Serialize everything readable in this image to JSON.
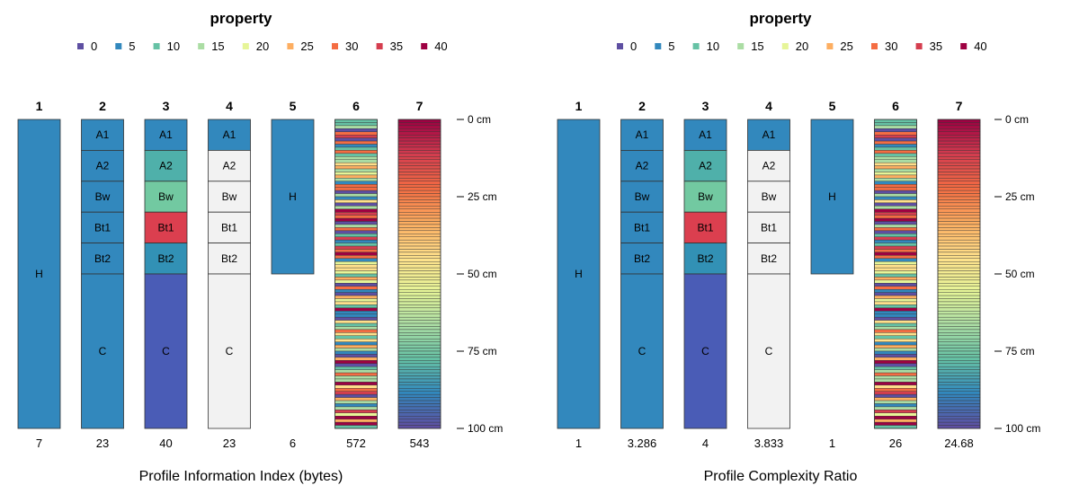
{
  "chart_data": [
    {
      "type": "soil-profile-sketch",
      "title": "property",
      "xlabel": "Profile Information Index (bytes)",
      "legend": {
        "position": "top",
        "entries": [
          {
            "label": "0",
            "color": "#5e4fa2"
          },
          {
            "label": "5",
            "color": "#3288bd"
          },
          {
            "label": "10",
            "color": "#66c2a5"
          },
          {
            "label": "15",
            "color": "#abdda4"
          },
          {
            "label": "20",
            "color": "#e6f598"
          },
          {
            "label": "25",
            "color": "#fdae61"
          },
          {
            "label": "30",
            "color": "#f46d43"
          },
          {
            "label": "35",
            "color": "#d53e4f"
          },
          {
            "label": "40",
            "color": "#9e0142"
          }
        ]
      },
      "depth_axis": {
        "ticks": [
          {
            "value": 0,
            "label": "0 cm"
          },
          {
            "value": 25,
            "label": "25 cm"
          },
          {
            "value": 50,
            "label": "50 cm"
          },
          {
            "value": 75,
            "label": "75 cm"
          },
          {
            "value": 100,
            "label": "100 cm"
          }
        ],
        "range": [
          0,
          100
        ]
      },
      "profiles": [
        {
          "id": "1",
          "value": "7",
          "pattern": "single",
          "horizons": [
            {
              "name": "H",
              "top": 0,
              "bottom": 100,
              "color": "#3288bd"
            }
          ]
        },
        {
          "id": "2",
          "value": "23",
          "pattern": "named",
          "horizons": [
            {
              "name": "A1",
              "top": 0,
              "bottom": 10,
              "color": "#3288bd"
            },
            {
              "name": "A2",
              "top": 10,
              "bottom": 20,
              "color": "#3288bd"
            },
            {
              "name": "Bw",
              "top": 20,
              "bottom": 30,
              "color": "#3288bd"
            },
            {
              "name": "Bt1",
              "top": 30,
              "bottom": 40,
              "color": "#3288bd"
            },
            {
              "name": "Bt2",
              "top": 40,
              "bottom": 50,
              "color": "#3288bd"
            },
            {
              "name": "C",
              "top": 50,
              "bottom": 100,
              "color": "#3288bd"
            }
          ]
        },
        {
          "id": "3",
          "value": "40",
          "pattern": "named",
          "horizons": [
            {
              "name": "A1",
              "top": 0,
              "bottom": 10,
              "color": "#3288bd"
            },
            {
              "name": "A2",
              "top": 10,
              "bottom": 20,
              "color": "#4fb0aa"
            },
            {
              "name": "Bw",
              "top": 20,
              "bottom": 30,
              "color": "#72c9a1"
            },
            {
              "name": "Bt1",
              "top": 30,
              "bottom": 40,
              "color": "#db3f4f"
            },
            {
              "name": "Bt2",
              "top": 40,
              "bottom": 50,
              "color": "#3291b5"
            },
            {
              "name": "C",
              "top": 50,
              "bottom": 100,
              "color": "#4a5cb6"
            }
          ]
        },
        {
          "id": "4",
          "value": "23",
          "pattern": "named",
          "horizons": [
            {
              "name": "A1",
              "top": 0,
              "bottom": 10,
              "color": "#3288bd"
            },
            {
              "name": "A2",
              "top": 10,
              "bottom": 20,
              "color": "#f2f2f2"
            },
            {
              "name": "Bw",
              "top": 20,
              "bottom": 30,
              "color": "#f2f2f2"
            },
            {
              "name": "Bt1",
              "top": 30,
              "bottom": 40,
              "color": "#f2f2f2"
            },
            {
              "name": "Bt2",
              "top": 40,
              "bottom": 50,
              "color": "#f2f2f2"
            },
            {
              "name": "C",
              "top": 50,
              "bottom": 100,
              "color": "#f2f2f2"
            }
          ]
        },
        {
          "id": "5",
          "value": "6",
          "pattern": "single",
          "horizons": [
            {
              "name": "H",
              "top": 0,
              "bottom": 50,
              "color": "#3288bd"
            }
          ]
        },
        {
          "id": "6",
          "value": "572",
          "pattern": "random-stripes",
          "seed": 11,
          "stripes": 100,
          "bottom": 100
        },
        {
          "id": "7",
          "value": "543",
          "pattern": "gradient",
          "stripes": 100,
          "bottom": 100
        }
      ]
    },
    {
      "type": "soil-profile-sketch",
      "title": "property",
      "xlabel": "Profile Complexity Ratio",
      "legend": {
        "position": "top",
        "entries": [
          {
            "label": "0",
            "color": "#5e4fa2"
          },
          {
            "label": "5",
            "color": "#3288bd"
          },
          {
            "label": "10",
            "color": "#66c2a5"
          },
          {
            "label": "15",
            "color": "#abdda4"
          },
          {
            "label": "20",
            "color": "#e6f598"
          },
          {
            "label": "25",
            "color": "#fdae61"
          },
          {
            "label": "30",
            "color": "#f46d43"
          },
          {
            "label": "35",
            "color": "#d53e4f"
          },
          {
            "label": "40",
            "color": "#9e0142"
          }
        ]
      },
      "depth_axis": {
        "ticks": [
          {
            "value": 0,
            "label": "0 cm"
          },
          {
            "value": 25,
            "label": "25 cm"
          },
          {
            "value": 50,
            "label": "50 cm"
          },
          {
            "value": 75,
            "label": "75 cm"
          },
          {
            "value": 100,
            "label": "100 cm"
          }
        ],
        "range": [
          0,
          100
        ]
      },
      "profiles": [
        {
          "id": "1",
          "value": "1",
          "pattern": "single",
          "horizons": [
            {
              "name": "H",
              "top": 0,
              "bottom": 100,
              "color": "#3288bd"
            }
          ]
        },
        {
          "id": "2",
          "value": "3.286",
          "pattern": "named",
          "horizons": [
            {
              "name": "A1",
              "top": 0,
              "bottom": 10,
              "color": "#3288bd"
            },
            {
              "name": "A2",
              "top": 10,
              "bottom": 20,
              "color": "#3288bd"
            },
            {
              "name": "Bw",
              "top": 20,
              "bottom": 30,
              "color": "#3288bd"
            },
            {
              "name": "Bt1",
              "top": 30,
              "bottom": 40,
              "color": "#3288bd"
            },
            {
              "name": "Bt2",
              "top": 40,
              "bottom": 50,
              "color": "#3288bd"
            },
            {
              "name": "C",
              "top": 50,
              "bottom": 100,
              "color": "#3288bd"
            }
          ]
        },
        {
          "id": "3",
          "value": "4",
          "pattern": "named",
          "horizons": [
            {
              "name": "A1",
              "top": 0,
              "bottom": 10,
              "color": "#3288bd"
            },
            {
              "name": "A2",
              "top": 10,
              "bottom": 20,
              "color": "#4fb0aa"
            },
            {
              "name": "Bw",
              "top": 20,
              "bottom": 30,
              "color": "#72c9a1"
            },
            {
              "name": "Bt1",
              "top": 30,
              "bottom": 40,
              "color": "#db3f4f"
            },
            {
              "name": "Bt2",
              "top": 40,
              "bottom": 50,
              "color": "#3291b5"
            },
            {
              "name": "C",
              "top": 50,
              "bottom": 100,
              "color": "#4a5cb6"
            }
          ]
        },
        {
          "id": "4",
          "value": "3.833",
          "pattern": "named",
          "horizons": [
            {
              "name": "A1",
              "top": 0,
              "bottom": 10,
              "color": "#3288bd"
            },
            {
              "name": "A2",
              "top": 10,
              "bottom": 20,
              "color": "#f2f2f2"
            },
            {
              "name": "Bw",
              "top": 20,
              "bottom": 30,
              "color": "#f2f2f2"
            },
            {
              "name": "Bt1",
              "top": 30,
              "bottom": 40,
              "color": "#f2f2f2"
            },
            {
              "name": "Bt2",
              "top": 40,
              "bottom": 50,
              "color": "#f2f2f2"
            },
            {
              "name": "C",
              "top": 50,
              "bottom": 100,
              "color": "#f2f2f2"
            }
          ]
        },
        {
          "id": "5",
          "value": "1",
          "pattern": "single",
          "horizons": [
            {
              "name": "H",
              "top": 0,
              "bottom": 50,
              "color": "#3288bd"
            }
          ]
        },
        {
          "id": "6",
          "value": "26",
          "pattern": "random-stripes",
          "seed": 11,
          "stripes": 100,
          "bottom": 100
        },
        {
          "id": "7",
          "value": "24.68",
          "pattern": "gradient",
          "stripes": 100,
          "bottom": 100
        }
      ]
    }
  ]
}
